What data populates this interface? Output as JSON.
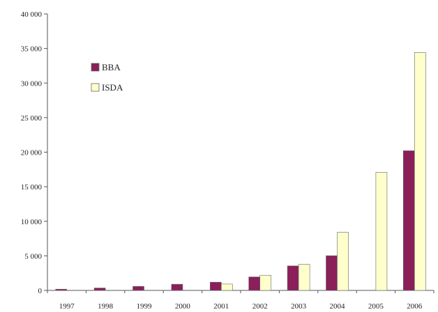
{
  "chart_data": {
    "type": "bar",
    "title": "",
    "xlabel": "",
    "ylabel": "",
    "categories": [
      "1997",
      "1998",
      "1999",
      "2000",
      "2001",
      "2002",
      "2003",
      "2004",
      "2005",
      "2006"
    ],
    "series": [
      {
        "name": "BBA",
        "color": "#8b1f5a",
        "values": [
          180,
          350,
          586,
          893,
          1189,
          1952,
          3548,
          5021,
          null,
          20207
        ]
      },
      {
        "name": "ISDA",
        "color": "#ffffcc",
        "values": [
          null,
          null,
          null,
          null,
          919,
          2192,
          3779,
          8422,
          17096,
          34423
        ]
      }
    ],
    "ylim": [
      0,
      40000
    ],
    "yticks": [
      0,
      5000,
      10000,
      15000,
      20000,
      25000,
      30000,
      35000,
      40000
    ],
    "ytick_labels": [
      "0",
      "5 000",
      "10 000",
      "15 000",
      "20 000",
      "25 000",
      "30 000",
      "35 000",
      "40 000"
    ],
    "grid": false,
    "legend_position": "top-left"
  }
}
